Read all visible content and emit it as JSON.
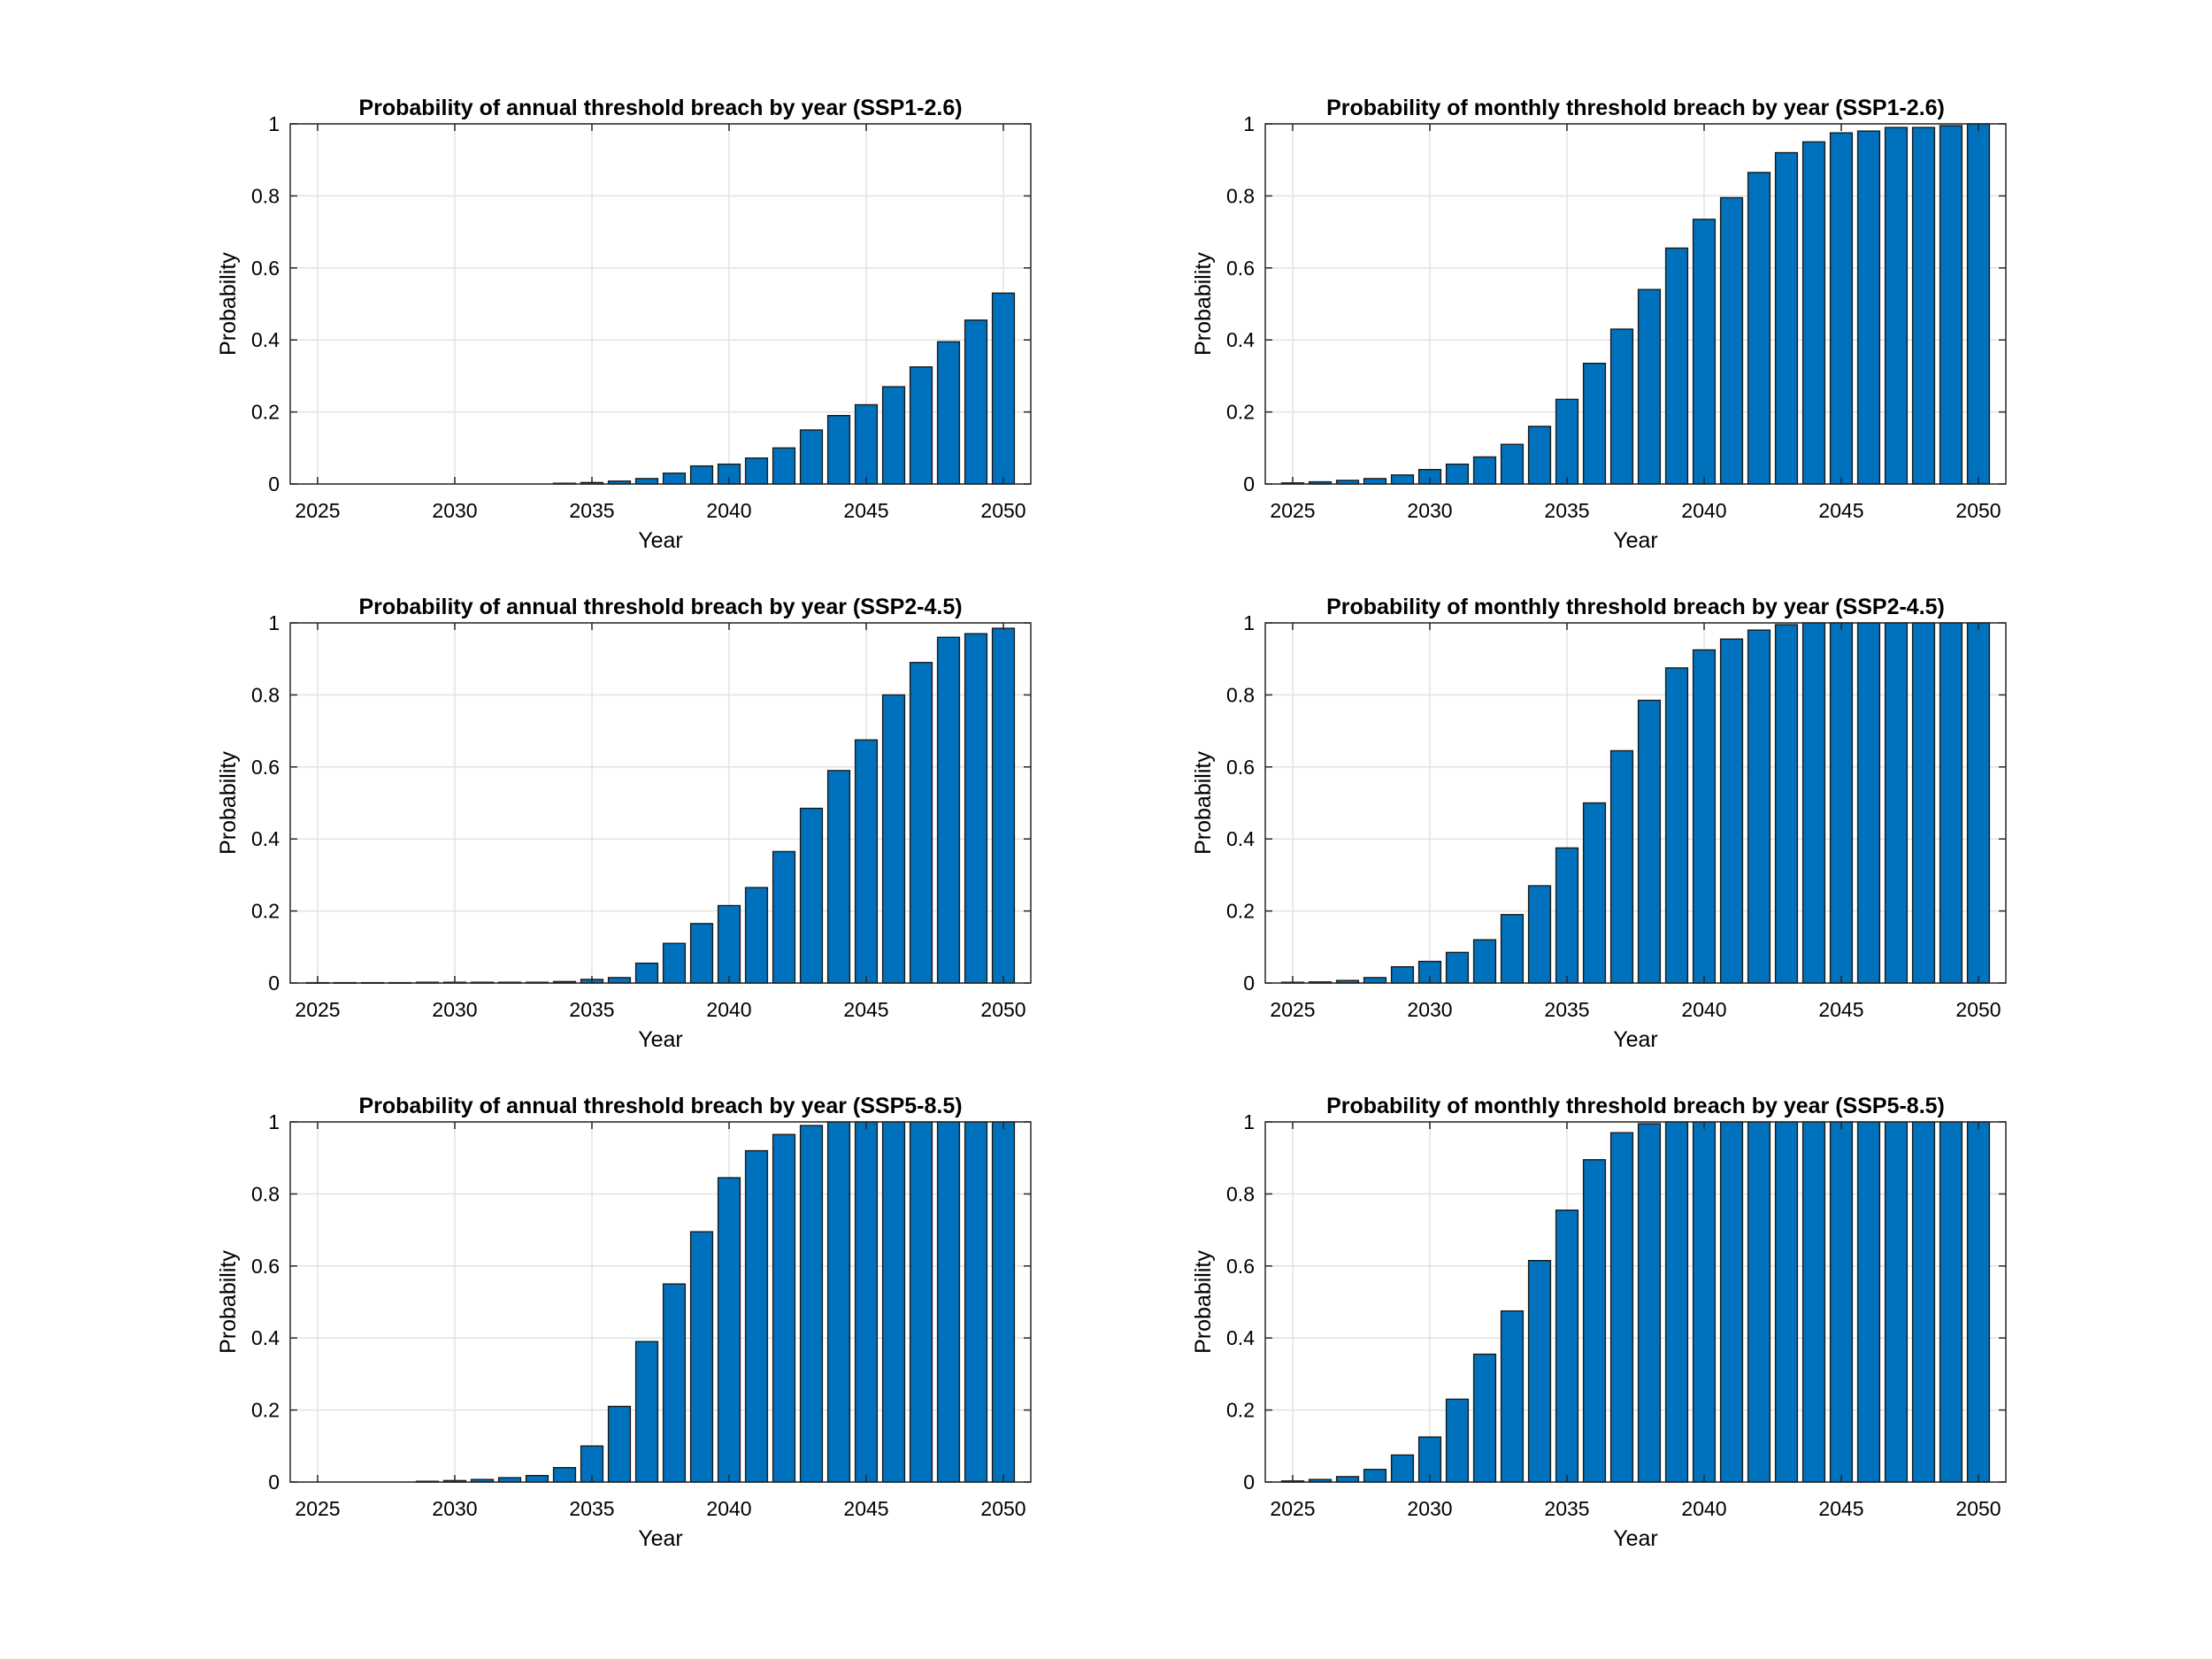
{
  "chart_data": [
    {
      "type": "bar",
      "title": "Probability of annual threshold breach by year (SSP1-2.6)",
      "xlabel": "Year",
      "ylabel": "Probability",
      "xlim": [
        2024,
        2051
      ],
      "ylim": [
        0,
        1
      ],
      "xticks": [
        2025,
        2030,
        2035,
        2040,
        2045,
        2050
      ],
      "yticks": [
        0,
        0.2,
        0.4,
        0.6,
        0.8,
        1
      ],
      "ytick_labels": [
        "0",
        "0.2",
        "0.4",
        "0.6",
        "0.8",
        "1"
      ],
      "grid": true,
      "color": "#0072BD",
      "x": [
        2025,
        2026,
        2027,
        2028,
        2029,
        2030,
        2031,
        2032,
        2033,
        2034,
        2035,
        2036,
        2037,
        2038,
        2039,
        2040,
        2041,
        2042,
        2043,
        2044,
        2045,
        2046,
        2047,
        2048,
        2049,
        2050
      ],
      "values": [
        0,
        0,
        0,
        0,
        0,
        0,
        0,
        0,
        0,
        0.002,
        0.004,
        0.008,
        0.015,
        0.03,
        0.05,
        0.055,
        0.072,
        0.1,
        0.15,
        0.19,
        0.22,
        0.27,
        0.325,
        0.395,
        0.455,
        0.53
      ]
    },
    {
      "type": "bar",
      "title": "Probability of monthly threshold breach by year (SSP1-2.6)",
      "xlabel": "Year",
      "ylabel": "Probability",
      "xlim": [
        2024,
        2051
      ],
      "ylim": [
        0,
        1
      ],
      "xticks": [
        2025,
        2030,
        2035,
        2040,
        2045,
        2050
      ],
      "yticks": [
        0,
        0.2,
        0.4,
        0.6,
        0.8,
        1
      ],
      "ytick_labels": [
        "0",
        "0.2",
        "0.4",
        "0.6",
        "0.8",
        "1"
      ],
      "grid": true,
      "color": "#0072BD",
      "x": [
        2025,
        2026,
        2027,
        2028,
        2029,
        2030,
        2031,
        2032,
        2033,
        2034,
        2035,
        2036,
        2037,
        2038,
        2039,
        2040,
        2041,
        2042,
        2043,
        2044,
        2045,
        2046,
        2047,
        2048,
        2049,
        2050
      ],
      "values": [
        0.003,
        0.006,
        0.01,
        0.015,
        0.025,
        0.04,
        0.055,
        0.075,
        0.11,
        0.16,
        0.235,
        0.335,
        0.43,
        0.54,
        0.655,
        0.735,
        0.795,
        0.865,
        0.92,
        0.95,
        0.975,
        0.98,
        0.99,
        0.99,
        0.995,
        1.0
      ]
    },
    {
      "type": "bar",
      "title": "Probability of annual threshold breach by year (SSP2-4.5)",
      "xlabel": "Year",
      "ylabel": "Probability",
      "xlim": [
        2024,
        2051
      ],
      "ylim": [
        0,
        1
      ],
      "xticks": [
        2025,
        2030,
        2035,
        2040,
        2045,
        2050
      ],
      "yticks": [
        0,
        0.2,
        0.4,
        0.6,
        0.8,
        1
      ],
      "ytick_labels": [
        "0",
        "0.2",
        "0.4",
        "0.6",
        "0.8",
        "1"
      ],
      "grid": true,
      "color": "#0072BD",
      "x": [
        2025,
        2026,
        2027,
        2028,
        2029,
        2030,
        2031,
        2032,
        2033,
        2034,
        2035,
        2036,
        2037,
        2038,
        2039,
        2040,
        2041,
        2042,
        2043,
        2044,
        2045,
        2046,
        2047,
        2048,
        2049,
        2050
      ],
      "values": [
        0.001,
        0.001,
        0.001,
        0.001,
        0.002,
        0.002,
        0.002,
        0.002,
        0.002,
        0.004,
        0.01,
        0.015,
        0.055,
        0.11,
        0.165,
        0.215,
        0.265,
        0.365,
        0.485,
        0.59,
        0.675,
        0.8,
        0.89,
        0.96,
        0.97,
        0.985
      ]
    },
    {
      "type": "bar",
      "title": "Probability of monthly threshold breach by year (SSP2-4.5)",
      "xlabel": "Year",
      "ylabel": "Probability",
      "xlim": [
        2024,
        2051
      ],
      "ylim": [
        0,
        1
      ],
      "xticks": [
        2025,
        2030,
        2035,
        2040,
        2045,
        2050
      ],
      "yticks": [
        0,
        0.2,
        0.4,
        0.6,
        0.8,
        1
      ],
      "ytick_labels": [
        "0",
        "0.2",
        "0.4",
        "0.6",
        "0.8",
        "1"
      ],
      "grid": true,
      "color": "#0072BD",
      "x": [
        2025,
        2026,
        2027,
        2028,
        2029,
        2030,
        2031,
        2032,
        2033,
        2034,
        2035,
        2036,
        2037,
        2038,
        2039,
        2040,
        2041,
        2042,
        2043,
        2044,
        2045,
        2046,
        2047,
        2048,
        2049,
        2050
      ],
      "values": [
        0.002,
        0.003,
        0.007,
        0.015,
        0.045,
        0.06,
        0.085,
        0.12,
        0.19,
        0.27,
        0.375,
        0.5,
        0.645,
        0.785,
        0.875,
        0.925,
        0.955,
        0.98,
        0.995,
        1.0,
        1.0,
        1.0,
        1.0,
        1.0,
        1.0,
        1.0
      ]
    },
    {
      "type": "bar",
      "title": "Probability of annual threshold breach by year (SSP5-8.5)",
      "xlabel": "Year",
      "ylabel": "Probability",
      "xlim": [
        2024,
        2051
      ],
      "ylim": [
        0,
        1
      ],
      "xticks": [
        2025,
        2030,
        2035,
        2040,
        2045,
        2050
      ],
      "yticks": [
        0,
        0.2,
        0.4,
        0.6,
        0.8,
        1
      ],
      "ytick_labels": [
        "0",
        "0.2",
        "0.4",
        "0.6",
        "0.8",
        "1"
      ],
      "grid": true,
      "color": "#0072BD",
      "x": [
        2025,
        2026,
        2027,
        2028,
        2029,
        2030,
        2031,
        2032,
        2033,
        2034,
        2035,
        2036,
        2037,
        2038,
        2039,
        2040,
        2041,
        2042,
        2043,
        2044,
        2045,
        2046,
        2047,
        2048,
        2049,
        2050
      ],
      "values": [
        0,
        0,
        0,
        0,
        0.002,
        0.004,
        0.007,
        0.012,
        0.018,
        0.04,
        0.1,
        0.21,
        0.39,
        0.55,
        0.695,
        0.845,
        0.92,
        0.965,
        0.99,
        1.0,
        1.0,
        1.0,
        1.0,
        1.0,
        1.0,
        1.0
      ]
    },
    {
      "type": "bar",
      "title": "Probability of monthly threshold breach by year (SSP5-8.5)",
      "xlabel": "Year",
      "ylabel": "Probability",
      "xlim": [
        2024,
        2051
      ],
      "ylim": [
        0,
        1
      ],
      "xticks": [
        2025,
        2030,
        2035,
        2040,
        2045,
        2050
      ],
      "yticks": [
        0,
        0.2,
        0.4,
        0.6,
        0.8,
        1
      ],
      "ytick_labels": [
        "0",
        "0.2",
        "0.4",
        "0.6",
        "0.8",
        "1"
      ],
      "grid": true,
      "color": "#0072BD",
      "x": [
        2025,
        2026,
        2027,
        2028,
        2029,
        2030,
        2031,
        2032,
        2033,
        2034,
        2035,
        2036,
        2037,
        2038,
        2039,
        2040,
        2041,
        2042,
        2043,
        2044,
        2045,
        2046,
        2047,
        2048,
        2049,
        2050
      ],
      "values": [
        0.003,
        0.007,
        0.015,
        0.035,
        0.075,
        0.125,
        0.23,
        0.355,
        0.475,
        0.615,
        0.755,
        0.895,
        0.97,
        0.995,
        1.0,
        1.0,
        1.0,
        1.0,
        1.0,
        1.0,
        1.0,
        1.0,
        1.0,
        1.0,
        1.0,
        1.0
      ]
    }
  ]
}
